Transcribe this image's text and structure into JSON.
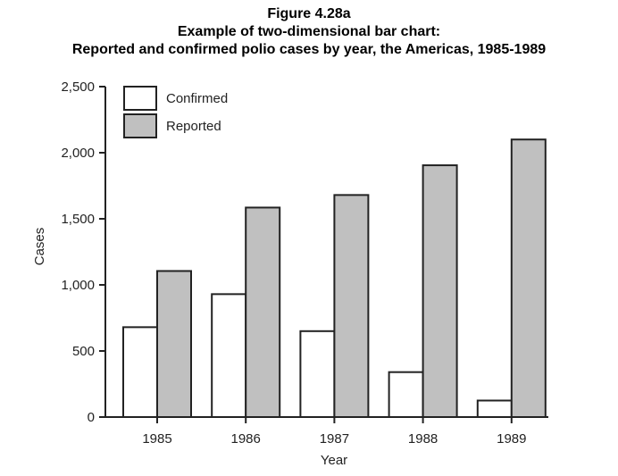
{
  "chart_data": {
    "type": "bar",
    "figure_label": "Figure 4.28a",
    "title": "Example of two-dimensional bar chart:",
    "subtitle": "Reported and confirmed polio cases by year, the Americas, 1985-1989",
    "xlabel": "Year",
    "ylabel": "Cases",
    "ylim": [
      0,
      2500
    ],
    "yticks": [
      0,
      500,
      1000,
      1500,
      2000,
      2500
    ],
    "ytick_labels": [
      "0",
      "500",
      "1,000",
      "1,500",
      "2,000",
      "2,500"
    ],
    "categories": [
      "1985",
      "1986",
      "1987",
      "1988",
      "1989"
    ],
    "series": [
      {
        "name": "Confirmed",
        "color": "#ffffff",
        "values": [
          680,
          930,
          650,
          340,
          125
        ]
      },
      {
        "name": "Reported",
        "color": "#c0c0c0",
        "values": [
          1105,
          1585,
          1680,
          1905,
          2100
        ]
      }
    ],
    "legend_position": "top-left",
    "grid": false
  }
}
